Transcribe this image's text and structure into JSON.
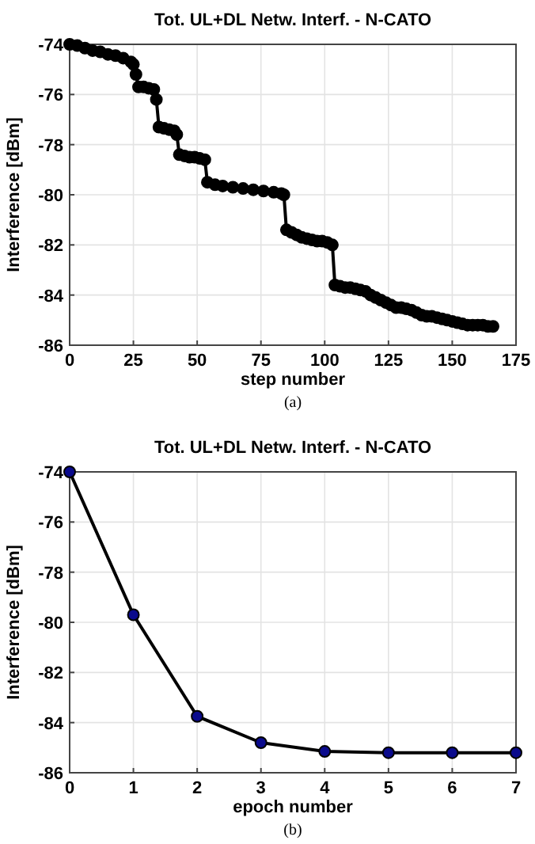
{
  "chart_data": [
    {
      "type": "line",
      "title": "Tot. UL+DL Netw. Interf. - N-CATO",
      "xlabel": "step number",
      "ylabel": "Interference [dBm]",
      "annotations": [
        "(a)"
      ],
      "xlim": [
        0,
        175
      ],
      "xticks": [
        0,
        25,
        50,
        75,
        100,
        125,
        150,
        175
      ],
      "ylim": [
        -86,
        -74
      ],
      "yticks": [
        -86,
        -84,
        -82,
        -80,
        -78,
        -76,
        -74
      ],
      "grid": true,
      "marker": "circle",
      "line_style": "solid",
      "series": [
        {
          "color": "#000000",
          "x": [
            0,
            3,
            6,
            9,
            12,
            15,
            18,
            21,
            24,
            25,
            26,
            27,
            29,
            31,
            33,
            34,
            35,
            37,
            39,
            41,
            42,
            43,
            45,
            47,
            49,
            51,
            53,
            54,
            57,
            60,
            64,
            68,
            72,
            76,
            80,
            83,
            84,
            85,
            87,
            89,
            91,
            93,
            95,
            97,
            99,
            101,
            103,
            104,
            106,
            108,
            110,
            112,
            114,
            116,
            118,
            120,
            122,
            124,
            126,
            128,
            130,
            132,
            134,
            136,
            138,
            140,
            142,
            144,
            146,
            148,
            150,
            152,
            154,
            156,
            158,
            160,
            162,
            164,
            166
          ],
          "values": [
            -74.0,
            -74.05,
            -74.15,
            -74.25,
            -74.3,
            -74.4,
            -74.45,
            -74.55,
            -74.7,
            -74.8,
            -75.2,
            -75.7,
            -75.7,
            -75.75,
            -75.8,
            -76.2,
            -77.3,
            -77.35,
            -77.4,
            -77.45,
            -77.6,
            -78.4,
            -78.45,
            -78.5,
            -78.5,
            -78.55,
            -78.6,
            -79.5,
            -79.6,
            -79.65,
            -79.7,
            -79.75,
            -79.8,
            -79.85,
            -79.9,
            -79.95,
            -80.0,
            -81.4,
            -81.5,
            -81.6,
            -81.7,
            -81.75,
            -81.8,
            -81.85,
            -81.85,
            -81.9,
            -82.0,
            -83.6,
            -83.65,
            -83.7,
            -83.7,
            -83.75,
            -83.8,
            -83.85,
            -84.0,
            -84.1,
            -84.2,
            -84.3,
            -84.4,
            -84.5,
            -84.5,
            -84.55,
            -84.6,
            -84.7,
            -84.8,
            -84.85,
            -84.85,
            -84.9,
            -84.95,
            -85.0,
            -85.05,
            -85.1,
            -85.15,
            -85.2,
            -85.2,
            -85.2,
            -85.2,
            -85.25,
            -85.25
          ]
        }
      ]
    },
    {
      "type": "line",
      "title": "Tot. UL+DL Netw. Interf. - N-CATO",
      "xlabel": "epoch number",
      "ylabel": "Interference [dBm]",
      "annotations": [
        "(b)"
      ],
      "xlim": [
        0,
        7
      ],
      "xticks": [
        0,
        1,
        2,
        3,
        4,
        5,
        6,
        7
      ],
      "ylim": [
        -86,
        -74
      ],
      "yticks": [
        -86,
        -84,
        -82,
        -80,
        -78,
        -76,
        -74
      ],
      "grid": true,
      "marker": "circle",
      "line_style": "solid",
      "series": [
        {
          "color": "#0a0a8c",
          "x": [
            0,
            1,
            2,
            3,
            4,
            5,
            6,
            7
          ],
          "values": [
            -74.0,
            -79.7,
            -83.75,
            -84.8,
            -85.15,
            -85.2,
            -85.2,
            -85.2
          ]
        }
      ]
    }
  ]
}
